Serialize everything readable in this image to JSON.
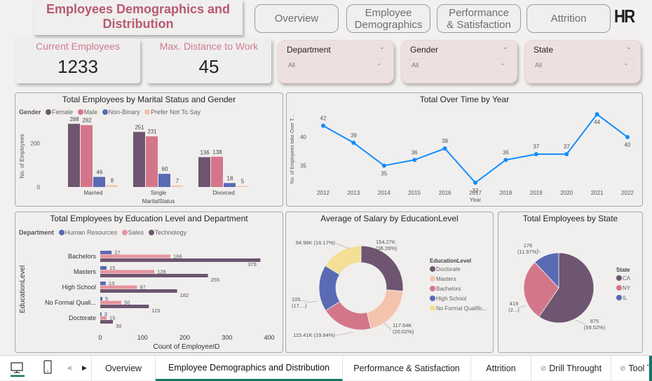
{
  "header": {
    "title": "Employees Demographics and Distribution",
    "nav_buttons": [
      "Overview",
      "Employee Demographics",
      "Performance & Satisfaction",
      "Attrition"
    ],
    "logo": "HR"
  },
  "kpis": [
    {
      "label": "Current Employees",
      "value": "1233"
    },
    {
      "label": "Max. Distance to Work",
      "value": "45"
    }
  ],
  "slicers": [
    {
      "label": "Department",
      "value": "All"
    },
    {
      "label": "Gender",
      "value": "All"
    },
    {
      "label": "State",
      "value": "All"
    }
  ],
  "colors": {
    "purple": "#6e5570",
    "pink": "#d4768a",
    "blue": "#5a6ab4",
    "peach": "#f5c3ad",
    "light_pink": "#e4949e",
    "yellow": "#f3df96",
    "line_blue": "#118dff",
    "title_red": "#b65a6f",
    "kpi_label": "#d07a8c",
    "tab_accent": "#117865"
  },
  "chart_data": [
    {
      "id": "marital",
      "type": "bar",
      "title": "Total Employees by Marital Status and Gender",
      "xlabel": "MaritalStatus",
      "ylabel": "No. of Employees",
      "legend_title": "Gender",
      "legend_position": "top-left",
      "categories": [
        "Married",
        "Single",
        "Divorced"
      ],
      "series": [
        {
          "name": "Female",
          "values": [
            288,
            251,
            136
          ],
          "color": "#6e5570"
        },
        {
          "name": "Male",
          "values": [
            282,
            231,
            138
          ],
          "color": "#d4768a"
        },
        {
          "name": "Non-Binary",
          "values": [
            46,
            60,
            18
          ],
          "color": "#5a6ab4"
        },
        {
          "name": "Prefer Not To Say",
          "values": [
            8,
            7,
            5
          ],
          "color": "#f5c3ad"
        }
      ],
      "yticks": [
        0,
        200
      ],
      "ylim": [
        0,
        300
      ]
    },
    {
      "id": "overtime",
      "type": "line",
      "title": "Total Over Time by Year",
      "xlabel": "Year",
      "ylabel": "No. of Employees take Over T...",
      "x": [
        "2012",
        "2013",
        "2014",
        "2015",
        "2016",
        "2017",
        "2018",
        "2019",
        "2020",
        "2021",
        "2022"
      ],
      "series": [
        {
          "name": "Over Time",
          "values": [
            42,
            39,
            35,
            36,
            38,
            32,
            36,
            37,
            37,
            44,
            40
          ],
          "color": "#118dff"
        }
      ],
      "yticks": [
        35,
        40
      ],
      "ylim": [
        31.5,
        45
      ]
    },
    {
      "id": "education",
      "type": "bar",
      "orientation": "horizontal",
      "title": "Total Employees by Education Level and Department",
      "xlabel": "Count of EmployeeID",
      "ylabel": "EducationLevel",
      "legend_title": "Department",
      "legend_position": "top-left",
      "categories": [
        "Bachelors",
        "Masters",
        "High School",
        "No Formal Quali...",
        "Doctorate"
      ],
      "series": [
        {
          "name": "Human Resources",
          "values": [
            27,
            15,
            13,
            5,
            3
          ],
          "color": "#5a6ab4"
        },
        {
          "name": "Sales",
          "values": [
            166,
            128,
            87,
            50,
            15
          ],
          "color": "#e4949e"
        },
        {
          "name": "Technology",
          "values": [
            379,
            255,
            182,
            115,
            30
          ],
          "color": "#6e5570"
        }
      ],
      "xticks": [
        0,
        100,
        200,
        300,
        400
      ],
      "xlim": [
        0,
        400
      ]
    },
    {
      "id": "salary",
      "type": "pie",
      "donut": true,
      "title": "Average of Salary by EducationLevel",
      "legend_title": "EducationLevel",
      "legend_position": "right",
      "slices": [
        {
          "name": "Doctorate",
          "value": 154.27,
          "label": "154.27K (26.26%)",
          "color": "#6e5570"
        },
        {
          "name": "Masters",
          "value": 117.64,
          "label": "117.64K (20.02%)",
          "color": "#f5c3ad"
        },
        {
          "name": "Bachelors",
          "value": 115.41,
          "label": "115.41K (19.64%)",
          "color": "#d4768a"
        },
        {
          "name": "High School",
          "value": 105.3,
          "label": "105.... (17....)",
          "color": "#5a6ab4"
        },
        {
          "name": "No Formal Qualific...",
          "value": 94.98,
          "label": "94.98K (16.17%)",
          "color": "#f3df96"
        }
      ]
    },
    {
      "id": "state",
      "type": "pie",
      "title": "Total Employees by State",
      "legend_title": "State",
      "legend_position": "right",
      "slices": [
        {
          "name": "CA",
          "value": 875,
          "label": "875 (59.52%)",
          "color": "#6e5570"
        },
        {
          "name": "NY",
          "value": 419,
          "label": "419 (2...)",
          "color": "#d4768a"
        },
        {
          "name": "IL",
          "value": 176,
          "label": "176 (11.97%)",
          "color": "#5a6ab4"
        }
      ]
    }
  ],
  "tabs": [
    {
      "label": "Overview",
      "active": false
    },
    {
      "label": "Employee Demographics and Distribution",
      "active": true
    },
    {
      "label": "Performance & Satisfaction",
      "active": false
    },
    {
      "label": "Attrition",
      "active": false
    },
    {
      "label": "Drill Throught",
      "active": false,
      "hidden_icon": true
    },
    {
      "label": "Tool T",
      "active": false,
      "hidden_icon": true
    }
  ]
}
